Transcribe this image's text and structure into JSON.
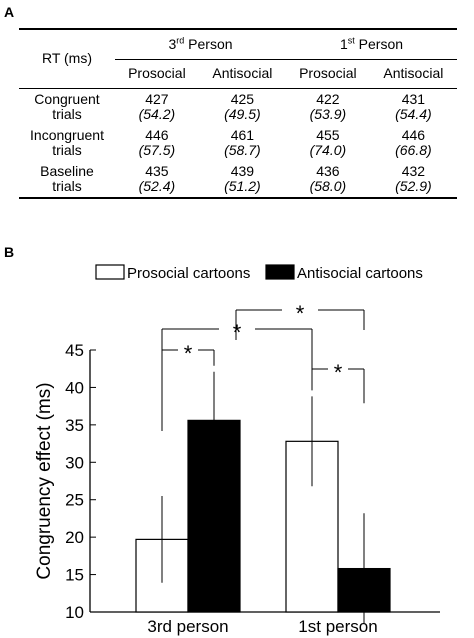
{
  "panels": {
    "a": "A",
    "b": "B"
  },
  "table": {
    "rt_label": "RT (ms)",
    "groups": [
      {
        "base": "3",
        "sup": "rd",
        "rest": " Person"
      },
      {
        "base": "1",
        "sup": "st",
        "rest": " Person"
      }
    ],
    "subheaders": [
      "Prosocial",
      "Antisocial",
      "Prosocial",
      "Antisocial"
    ],
    "rows": [
      {
        "label1": "Congruent",
        "label2": "trials",
        "values": [
          "427",
          "425",
          "422",
          "431"
        ],
        "sds": [
          "(54.2)",
          "(49.5)",
          "(53.9)",
          "(54.4)"
        ]
      },
      {
        "label1": "Incongruent",
        "label2": "trials",
        "values": [
          "446",
          "461",
          "455",
          "446"
        ],
        "sds": [
          "(57.5)",
          "(58.7)",
          "(74.0)",
          "(66.8)"
        ]
      },
      {
        "label1": "Baseline",
        "label2": "trials",
        "values": [
          "435",
          "439",
          "436",
          "432"
        ],
        "sds": [
          "(52.4)",
          "(51.2)",
          "(58.0)",
          "(52.9)"
        ]
      }
    ]
  },
  "chart_data": {
    "type": "bar",
    "categories": [
      "3rd person",
      "1st person"
    ],
    "series": [
      {
        "name": "Prosocial cartoons",
        "color": "#ffffff",
        "values": [
          19.7,
          32.8
        ],
        "errors": [
          5.8,
          6.0
        ]
      },
      {
        "name": "Antisocial cartoons",
        "color": "#000000",
        "values": [
          35.6,
          15.8
        ],
        "errors": [
          6.5,
          7.4
        ]
      }
    ],
    "ylabel": "Congruency effect (ms)",
    "ylim": [
      10,
      45
    ],
    "yticks": [
      10,
      15,
      20,
      25,
      30,
      35,
      40,
      45
    ],
    "legend_position": "top",
    "significance": [
      "*",
      "*",
      "*",
      "*"
    ],
    "grid": false
  }
}
